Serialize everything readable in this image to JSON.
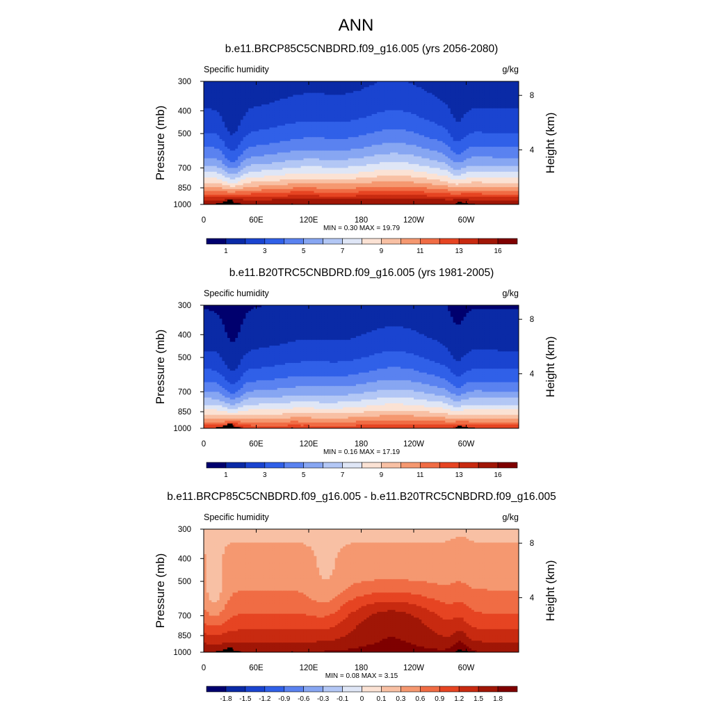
{
  "figure": {
    "title": "ANN",
    "yaxis_label": "Pressure (mb)",
    "right_axis_label": "Height (km)",
    "pressure_ticks": [
      "300",
      "400",
      "500",
      "700",
      "850",
      "1000"
    ],
    "pressure_tick_values": [
      300,
      400,
      500,
      700,
      850,
      1000
    ],
    "height_ticks": [
      "8",
      "4"
    ],
    "height_tick_values": [
      8,
      4
    ],
    "x_ticks": [
      "0",
      "60E",
      "120E",
      "180",
      "120W",
      "60W"
    ],
    "x_tick_values": [
      0,
      60,
      120,
      180,
      240,
      300
    ]
  },
  "chart_data": [
    {
      "type": "heatmap",
      "title": "b.e11.BRCP85C5CNBDRD.f09_g16.005 (yrs 2056-2080)",
      "left_label": "Specific humidity",
      "units": "g/kg",
      "xlabel": "",
      "ylabel": "Pressure (mb)",
      "xlim": [
        0,
        360
      ],
      "ylim": [
        1000,
        300
      ],
      "stats": "MIN =   0.30  MAX =  19.79",
      "min": 0.3,
      "max": 19.79,
      "colorbar_labels": [
        "1",
        "3",
        "5",
        "7",
        "9",
        "11",
        "13",
        "16"
      ],
      "colorbar_levels": [
        0,
        1,
        2,
        3,
        4,
        5,
        6,
        7,
        8,
        9,
        10,
        11,
        12,
        13,
        14,
        16
      ],
      "colorbar_palette": [
        "#00006e",
        "#0a2aa6",
        "#1a44d0",
        "#3060e8",
        "#5a82f0",
        "#87a6f2",
        "#b3c7f5",
        "#dfe6f6",
        "#fbe2d4",
        "#f8c0a4",
        "#f59870",
        "#f06c44",
        "#e64422",
        "#c82a10",
        "#a01606",
        "#7f0000"
      ]
    },
    {
      "type": "heatmap",
      "title": "b.e11.B20TRC5CNBDRD.f09_g16.005 (yrs 1981-2005)",
      "left_label": "Specific humidity",
      "units": "g/kg",
      "xlabel": "",
      "ylabel": "Pressure (mb)",
      "xlim": [
        0,
        360
      ],
      "ylim": [
        1000,
        300
      ],
      "stats": "MIN =   0.16  MAX =  17.19",
      "min": 0.16,
      "max": 17.19,
      "colorbar_labels": [
        "1",
        "3",
        "5",
        "7",
        "9",
        "11",
        "13",
        "16"
      ],
      "colorbar_levels": [
        0,
        1,
        2,
        3,
        4,
        5,
        6,
        7,
        8,
        9,
        10,
        11,
        12,
        13,
        14,
        16
      ],
      "colorbar_palette": [
        "#00006e",
        "#0a2aa6",
        "#1a44d0",
        "#3060e8",
        "#5a82f0",
        "#87a6f2",
        "#b3c7f5",
        "#dfe6f6",
        "#fbe2d4",
        "#f8c0a4",
        "#f59870",
        "#f06c44",
        "#e64422",
        "#c82a10",
        "#a01606",
        "#7f0000"
      ]
    },
    {
      "type": "heatmap",
      "title": "b.e11.BRCP85C5CNBDRD.f09_g16.005 - b.e11.B20TRC5CNBDRD.f09_g16.005",
      "left_label": "Specific humidity",
      "units": "g/kg",
      "xlabel": "",
      "ylabel": "Pressure (mb)",
      "xlim": [
        0,
        360
      ],
      "ylim": [
        1000,
        300
      ],
      "stats": "MIN =   0.08  MAX =   3.15",
      "min": 0.08,
      "max": 3.15,
      "colorbar_labels": [
        "-1.8",
        "-1.5",
        "-1.2",
        "-0.9",
        "-0.6",
        "-0.3",
        "-0.1",
        "0",
        "0.1",
        "0.3",
        "0.6",
        "0.9",
        "1.2",
        "1.5",
        "1.8"
      ],
      "colorbar_levels": [
        -2.1,
        -1.8,
        -1.5,
        -1.2,
        -0.9,
        -0.6,
        -0.3,
        -0.1,
        0,
        0.1,
        0.3,
        0.6,
        0.9,
        1.2,
        1.5,
        1.8
      ],
      "colorbar_palette": [
        "#00006e",
        "#0a2aa6",
        "#1a44d0",
        "#3060e8",
        "#5a82f0",
        "#87a6f2",
        "#b3c7f5",
        "#dfe6f6",
        "#fbe2d4",
        "#f8c0a4",
        "#f59870",
        "#f06c44",
        "#e64422",
        "#c82a10",
        "#a01606",
        "#7f0000"
      ]
    }
  ]
}
